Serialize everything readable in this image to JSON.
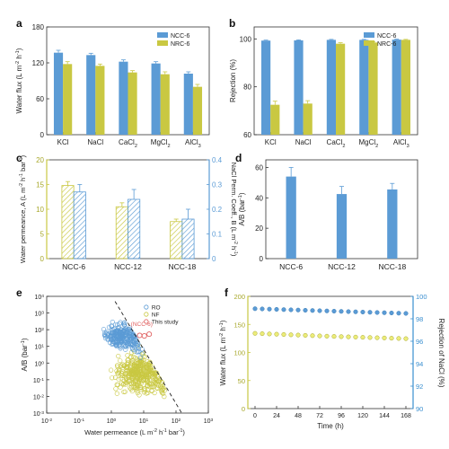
{
  "colors": {
    "blue": "#5b9bd5",
    "olive": "#c9c842",
    "yellow": "#ecec7a",
    "red": "#e06060",
    "dark_olive": "#a8a82c",
    "axis_f_right": "#3a8fd0"
  },
  "chart_data": [
    {
      "id": "a",
      "panel_label": "a",
      "type": "bar",
      "categories": [
        "KCl",
        "NaCl",
        "CaCl",
        "MgCl",
        "AlCl"
      ],
      "category_subscripts": [
        "",
        "",
        "2",
        "2",
        "3"
      ],
      "ylabel": "Water flux (L m",
      "ylabel_sup1": "-2",
      "ylabel_mid": " h",
      "ylabel_sup2": "-1",
      "ylabel_end": ")",
      "ylim": [
        0,
        180
      ],
      "yticks": [
        "0",
        "60",
        "120",
        "180"
      ],
      "series": [
        {
          "name": "NCC-6",
          "values": [
            137,
            133,
            122,
            119,
            102
          ],
          "errors": [
            4,
            3,
            3,
            3,
            3
          ]
        },
        {
          "name": "NRC-6",
          "values": [
            118,
            115,
            104,
            101,
            80
          ],
          "errors": [
            4,
            3,
            3,
            4,
            4
          ]
        }
      ],
      "legend_position": "top-right"
    },
    {
      "id": "b",
      "panel_label": "b",
      "type": "bar",
      "categories": [
        "KCl",
        "NaCl",
        "CaCl",
        "MgCl",
        "AlCl"
      ],
      "category_subscripts": [
        "",
        "",
        "2",
        "2",
        "3"
      ],
      "ylabel": "Rejection (%)",
      "ylim": [
        60,
        105
      ],
      "yticks": [
        "60",
        "80",
        "100"
      ],
      "series": [
        {
          "name": "NCC-6",
          "values": [
            99.3,
            99.4,
            99.6,
            99.6,
            99.7
          ],
          "errors": [
            0.2,
            0.2,
            0.2,
            0.2,
            0.2
          ]
        },
        {
          "name": "NRC-6",
          "values": [
            72.5,
            73.0,
            98.0,
            98.5,
            99.6
          ],
          "errors": [
            1.5,
            1.2,
            0.4,
            0.3,
            0.2
          ]
        }
      ],
      "legend_position": "top-right"
    },
    {
      "id": "c",
      "panel_label": "c",
      "type": "bar",
      "categories": [
        "NCC-6",
        "NCC-12",
        "NCC-18"
      ],
      "ylabel": "Water permeance, A (L m",
      "ylabel_sup1": "-2",
      "ylabel_mid": " h",
      "ylabel_sup2": "-1",
      "ylabel_mid2": " bar",
      "ylabel_sup3": "-1",
      "ylabel_end": ")",
      "ylabel_right": "NaCl Perm. Coeff., B (L m",
      "ylabel_right_sup1": "-2",
      "ylabel_right_mid": " h",
      "ylabel_right_sup2": "-1",
      "ylabel_right_end": ")",
      "ylim": [
        0,
        20
      ],
      "yticks": [
        "0",
        "5",
        "10",
        "15",
        "20"
      ],
      "ylim_right": [
        0,
        0.4
      ],
      "yticks_right": [
        "0",
        "0.1",
        "0.2",
        "0.3",
        "0.4"
      ],
      "series": [
        {
          "name": "A",
          "axis": "left",
          "values": [
            14.8,
            10.5,
            7.5
          ],
          "errors": [
            0.8,
            0.8,
            0.5
          ]
        },
        {
          "name": "B",
          "axis": "right",
          "values": [
            0.27,
            0.24,
            0.16
          ],
          "errors": [
            0.03,
            0.04,
            0.04
          ]
        }
      ]
    },
    {
      "id": "d",
      "panel_label": "d",
      "type": "bar",
      "categories": [
        "NCC-6",
        "NCC-12",
        "NCC-18"
      ],
      "ylabel": "A/B (bar",
      "ylabel_sup1": "-1",
      "ylabel_end": ")",
      "ylim": [
        0,
        65
      ],
      "yticks": [
        "0",
        "20",
        "40",
        "60"
      ],
      "series": [
        {
          "name": "A/B",
          "values": [
            54,
            42.5,
            45.5
          ],
          "errors": [
            6,
            5,
            4
          ]
        }
      ]
    },
    {
      "id": "e",
      "panel_label": "e",
      "type": "scatter",
      "xscale": "log",
      "yscale": "log",
      "xlim": [
        0.01,
        1000
      ],
      "ylim": [
        0.001,
        10000
      ],
      "xtick_exponents": [
        "-2",
        "-1",
        "0",
        "1",
        "2",
        "3"
      ],
      "ytick_exponents": [
        "-3",
        "-2",
        "-1",
        "0",
        "1",
        "2",
        "3",
        "4"
      ],
      "xlabel": "Water permeance (L m",
      "xlabel_sup1": "-2",
      "xlabel_mid": " h",
      "xlabel_sup2": "-1",
      "xlabel_mid2": " bar",
      "xlabel_sup3": "-1",
      "xlabel_end": ")",
      "ylabel": "A/B (bar",
      "ylabel_sup1": "-1",
      "ylabel_end": ")",
      "series": [
        {
          "name": "RO",
          "color": "#5b9bd5",
          "count": 260,
          "center_log_x": 0.35,
          "center_log_y": 1.6,
          "spread_log_x": 0.35,
          "spread_log_y": 0.55
        },
        {
          "name": "NF",
          "color": "#c9c842",
          "count": 380,
          "center_log_x": 0.85,
          "center_log_y": -0.6,
          "spread_log_x": 0.45,
          "spread_log_y": 0.75
        },
        {
          "name": "This study",
          "color": "#e06060",
          "points": [
            [
              14.8,
              54
            ],
            [
              10.5,
              42.5
            ],
            [
              7.5,
              45.5
            ]
          ]
        }
      ],
      "annotation": "(NCC-6)",
      "upper_bound_line": [
        [
          1.3,
          5000
        ],
        [
          150,
          0.001
        ]
      ],
      "legend_position": "top-right"
    },
    {
      "id": "f",
      "panel_label": "f",
      "type": "scatter",
      "xlabel": "Time (h)",
      "xlim": [
        -8,
        176
      ],
      "xticks": [
        "0",
        "24",
        "48",
        "72",
        "96",
        "120",
        "144",
        "168"
      ],
      "ylabel": "Water flux (L m",
      "ylabel_sup1": "-2",
      "ylabel_mid": " h",
      "ylabel_sup2": "-1",
      "ylabel_end": ")",
      "ylim": [
        0,
        200
      ],
      "yticks": [
        "0",
        "50",
        "100",
        "150",
        "200"
      ],
      "ylabel_right": "Rejection of NaCl (%)",
      "ylim_right": [
        90,
        100
      ],
      "yticks_right": [
        "90",
        "92",
        "94",
        "96",
        "98",
        "100"
      ],
      "x": [
        0,
        8,
        16,
        24,
        32,
        40,
        48,
        56,
        64,
        72,
        80,
        88,
        96,
        104,
        112,
        120,
        128,
        136,
        144,
        152,
        160,
        168
      ],
      "series": [
        {
          "name": "Rejection of NaCl",
          "axis": "right",
          "values": [
            98.9,
            98.88,
            98.86,
            98.84,
            98.82,
            98.8,
            98.78,
            98.76,
            98.74,
            98.72,
            98.7,
            98.68,
            98.66,
            98.64,
            98.62,
            98.6,
            98.58,
            98.56,
            98.54,
            98.52,
            98.5,
            98.48
          ]
        },
        {
          "name": "Water flux",
          "axis": "left",
          "values": [
            134,
            133.5,
            133,
            132.5,
            132,
            131.5,
            131,
            130.5,
            130,
            129.5,
            129,
            128.6,
            128.2,
            127.8,
            127.4,
            127,
            126.6,
            126.2,
            125.8,
            125.4,
            125,
            124.6
          ]
        }
      ]
    }
  ]
}
